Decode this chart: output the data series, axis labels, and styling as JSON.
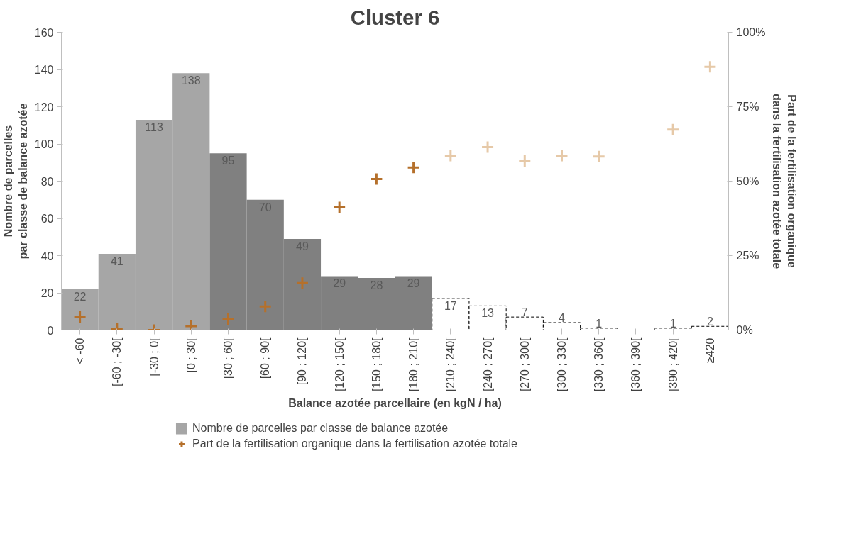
{
  "chart_data": {
    "type": "bar",
    "title": "Cluster 6",
    "xlabel": "Balance azotée parcellaire (en kgN / ha)",
    "ylabel": "Nombre de parcelles\npar classe de balance azotée",
    "y2label": "Part de la fertilisation organique\ndans la fertilisation azotée totale",
    "categories": [
      "< -60",
      "[-60 ; -30[",
      "[-30 ; 0[",
      "[0 ; 30[",
      "[30 ; 60[",
      "[60 ; 90[",
      "[90 ; 120[",
      "[120 ; 150[",
      "[150 ; 180[",
      "[180 ; 210[",
      "[210 ; 240[",
      "[240 ; 270[",
      "[270 ; 300[",
      "[300 ; 330[",
      "[330 ; 360[",
      "[360 ; 390[",
      "[390 ; 420[",
      "≥420"
    ],
    "series": [
      {
        "name": "Nombre de parcelles par classe de balance azotée",
        "color": "#a6a6a6",
        "colors": [
          "#a6a6a6",
          "#a6a6a6",
          "#a6a6a6",
          "#a6a6a6",
          "#808080",
          "#808080",
          "#808080",
          "#808080",
          "#808080",
          "#808080",
          "#ffffff",
          "#ffffff",
          "#ffffff",
          "#ffffff",
          "#ffffff",
          "#ffffff",
          "#ffffff",
          "#ffffff"
        ],
        "values": [
          22,
          41,
          113,
          138,
          95,
          70,
          49,
          29,
          28,
          29,
          17,
          13,
          7,
          4,
          1,
          0,
          1,
          2
        ],
        "value_labels": [
          "22",
          "41",
          "113",
          "138",
          "95",
          "70",
          "49",
          "29",
          "28",
          "29",
          "17",
          "13",
          "7",
          "4",
          "1",
          null,
          "1",
          "2"
        ]
      },
      {
        "name": "Part de la fertilisation organique dans la fertilisation azotée totale",
        "type": "scatter",
        "axis": "y2",
        "color": "#b5702b",
        "colors": [
          "#b5702b",
          "#b5702b",
          "#b5702b",
          "#b5702b",
          "#b5702b",
          "#b5702b",
          "#b5702b",
          "#b5702b",
          "#b5702b",
          "#b5702b",
          "#e6c9a8",
          "#e6c9a8",
          "#e6c9a8",
          "#e6c9a8",
          "#e6c9a8",
          "#e6c9a8",
          "#e6c9a8",
          "#e6c9a8"
        ],
        "values": [
          4.4,
          0.4,
          0,
          1.3,
          3.7,
          7.9,
          15.8,
          41.2,
          50.7,
          54.6,
          58.6,
          61.4,
          56.8,
          58.6,
          58.3,
          null,
          67.3,
          88.4
        ]
      }
    ],
    "ylim": [
      0,
      160
    ],
    "yticks": [
      0,
      20,
      40,
      60,
      80,
      100,
      120,
      140,
      160
    ],
    "y2lim": [
      0,
      100
    ],
    "y2ticks": [
      {
        "value": 0,
        "label": "0%"
      },
      {
        "value": 25,
        "label": "25%"
      },
      {
        "value": 50,
        "label": "50%"
      },
      {
        "value": 75,
        "label": "75%"
      },
      {
        "value": 100,
        "label": "100%"
      }
    ],
    "legend": "bottom",
    "marker": "cross",
    "grid": false
  }
}
